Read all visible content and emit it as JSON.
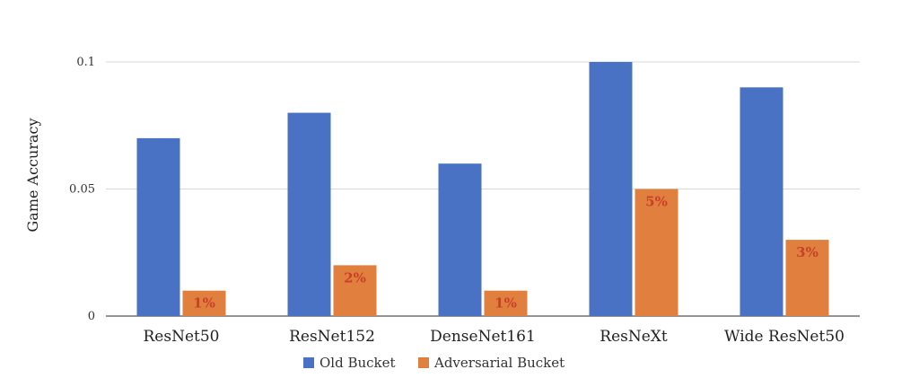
{
  "chart_data": {
    "type": "bar",
    "title": "",
    "xlabel": "",
    "ylabel": "Game Accuracy",
    "ylim": [
      0,
      0.1
    ],
    "yticks": [
      {
        "value": 0,
        "label": "0"
      },
      {
        "value": 0.05,
        "label": "0.05"
      },
      {
        "value": 0.1,
        "label": "0.1"
      }
    ],
    "grid": true,
    "legend_position": "bottom",
    "categories": [
      "ResNet50",
      "ResNet152",
      "DenseNet161",
      "ResNeXt",
      "Wide ResNet50"
    ],
    "series": [
      {
        "name": "Old Bucket",
        "color": "#4a72c4",
        "values": [
          0.07,
          0.08,
          0.06,
          0.1,
          0.09
        ],
        "data_labels": [
          "",
          "",
          "",
          "",
          ""
        ]
      },
      {
        "name": "Adversarial Bucket",
        "color": "#e07f3e",
        "values": [
          0.01,
          0.02,
          0.01,
          0.05,
          0.03
        ],
        "data_labels": [
          "1%",
          "2%",
          "1%",
          "5%",
          "3%"
        ]
      }
    ],
    "data_label_color": "#c8402a",
    "gridline_color": "#d9d9d9"
  }
}
